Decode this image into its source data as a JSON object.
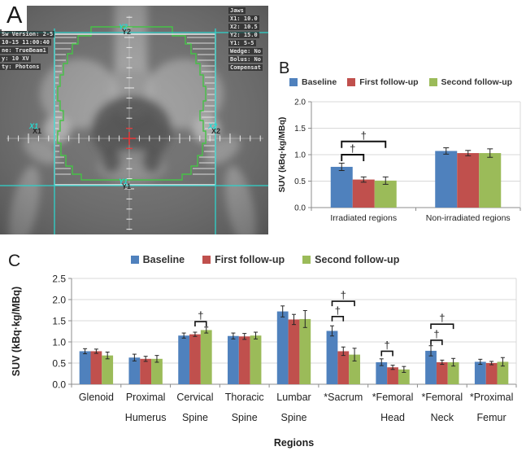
{
  "panels": {
    "a": {
      "label": "A",
      "info_left": [
        "Sw Version: 2-5",
        "10-15 11:00:40",
        "ne: TrueBeam1",
        "y: 10 XV",
        "ty: Photons"
      ],
      "info_right": [
        "Jaws",
        "X1:  10.0",
        "X2:  10.5",
        "Y2:  15.0",
        "Y1:  5-5",
        "Wedge:  No",
        "Bolus:  No",
        "Compensat"
      ],
      "jaw_labels": {
        "top": "Y2",
        "bottom": "Y1",
        "left": "X1",
        "right": "X2"
      }
    },
    "b": {
      "label": "B"
    },
    "c": {
      "label": "C"
    }
  },
  "colors": {
    "baseline": "#4F81BD",
    "first_followup": "#C0504D",
    "second_followup": "#9BBB59",
    "field_box": "#F2F2F2",
    "jaw_lines": "#2ED3CB",
    "mlc_contour": "#46C247",
    "crosshair_center": "#E23B3B",
    "gridline": "#D9D9D9",
    "axis": "#8C8C8C"
  },
  "chart_data": [
    {
      "panel": "B",
      "type": "bar",
      "title": "",
      "categories": [
        "Irradiated regions",
        "Non-irradiated regions"
      ],
      "series": [
        {
          "name": "Baseline",
          "color": "#4F81BD",
          "values": [
            0.77,
            1.07
          ],
          "errors": [
            0.07,
            0.06
          ]
        },
        {
          "name": "First follow-up",
          "color": "#C0504D",
          "values": [
            0.53,
            1.03
          ],
          "errors": [
            0.05,
            0.05
          ]
        },
        {
          "name": "Second follow-up",
          "color": "#9BBB59",
          "values": [
            0.51,
            1.03
          ],
          "errors": [
            0.07,
            0.08
          ]
        }
      ],
      "xlabel": "",
      "ylabel": "SUV (kBq·kg/MBq)",
      "ylim": [
        0,
        2.0
      ],
      "yticks": [
        "0.0",
        "0.5",
        "1.0",
        "1.5",
        "2.0"
      ],
      "grid": true,
      "legend_position": "top",
      "significance": [
        {
          "category": 0,
          "from": 0,
          "to": 1,
          "y": 1.0,
          "label": "†"
        },
        {
          "category": 0,
          "from": 0,
          "to": 2,
          "y": 1.25,
          "label": "†"
        }
      ]
    },
    {
      "panel": "C",
      "type": "bar",
      "title": "",
      "categories": [
        "Glenoid",
        "Proximal Humerus",
        "Cervical Spine",
        "Thoracic Spine",
        "Lumbar Spine",
        "*Sacrum",
        "*Femoral Head",
        "*Femoral Neck",
        "*Proximal Femur"
      ],
      "series": [
        {
          "name": "Baseline",
          "color": "#4F81BD",
          "values": [
            0.78,
            0.63,
            1.15,
            1.14,
            1.72,
            1.26,
            0.52,
            0.79,
            0.53
          ],
          "errors": [
            0.06,
            0.08,
            0.06,
            0.07,
            0.13,
            0.12,
            0.08,
            0.12,
            0.06
          ]
        },
        {
          "name": "First follow-up",
          "color": "#C0504D",
          "values": [
            0.78,
            0.6,
            1.18,
            1.13,
            1.53,
            0.78,
            0.4,
            0.52,
            0.5
          ],
          "errors": [
            0.05,
            0.06,
            0.05,
            0.07,
            0.12,
            0.1,
            0.05,
            0.05,
            0.04
          ]
        },
        {
          "name": "Second follow-up",
          "color": "#9BBB59",
          "values": [
            0.68,
            0.6,
            1.28,
            1.15,
            1.54,
            0.7,
            0.35,
            0.52,
            0.53
          ],
          "errors": [
            0.08,
            0.08,
            0.07,
            0.08,
            0.2,
            0.15,
            0.07,
            0.09,
            0.1
          ]
        }
      ],
      "xlabel": "Regions",
      "ylabel": "SUV (kBq·kg/MBq)",
      "ylim": [
        0,
        2.5
      ],
      "yticks": [
        "0.0",
        "0.5",
        "1.0",
        "1.5",
        "2.0",
        "2.5"
      ],
      "grid": true,
      "legend_position": "top",
      "significance": [
        {
          "category": 2,
          "from": 1,
          "to": 2,
          "y": 1.48,
          "label": "†"
        },
        {
          "category": 5,
          "from": 0,
          "to": 1,
          "y": 1.6,
          "label": "†"
        },
        {
          "category": 5,
          "from": 0,
          "to": 2,
          "y": 1.96,
          "label": "†"
        },
        {
          "category": 6,
          "from": 0,
          "to": 1,
          "y": 0.78,
          "label": "†"
        },
        {
          "category": 7,
          "from": 0,
          "to": 1,
          "y": 1.04,
          "label": "†"
        },
        {
          "category": 7,
          "from": 0,
          "to": 2,
          "y": 1.42,
          "label": "†"
        }
      ]
    }
  ]
}
